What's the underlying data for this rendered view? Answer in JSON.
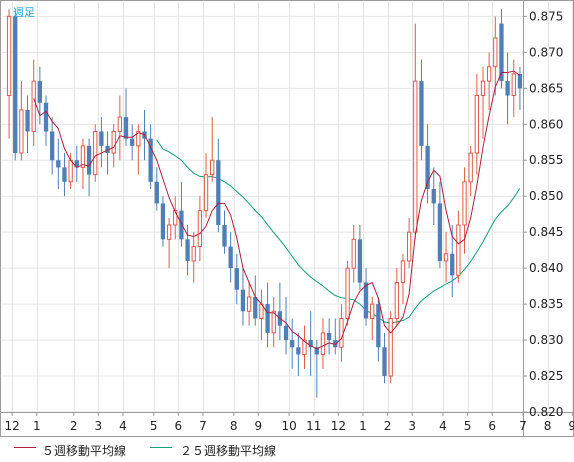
{
  "period_label": "週足",
  "colors": {
    "up_candle": "#e15b4a",
    "down_candle": "#4f7fb4",
    "ma5": "#b01e3c",
    "ma25": "#13a07c",
    "grid": "#e4e4e4",
    "frame": "#9a9a9a",
    "axis_text": "#222222"
  },
  "chart_data": {
    "type": "candlestick",
    "title": "",
    "xlabel": "",
    "ylabel": "",
    "ylim": [
      0.82,
      0.877
    ],
    "y_ticks": [
      "0.875",
      "0.870",
      "0.865",
      "0.860",
      "0.855",
      "0.850",
      "0.845",
      "0.840",
      "0.835",
      "0.830",
      "0.825",
      "0.820"
    ],
    "x_ticks": [
      "12",
      "1",
      "2",
      "3",
      "4",
      "5",
      "6",
      "7",
      "8",
      "9",
      "10",
      "11",
      "12",
      "1",
      "2",
      "3",
      "4",
      "5",
      "6",
      "7",
      "8",
      "9"
    ],
    "grid": true,
    "legend_position": "bottom",
    "candles": [
      [
        0.864,
        0.876,
        0.858,
        0.875
      ],
      [
        0.875,
        0.876,
        0.855,
        0.856
      ],
      [
        0.856,
        0.866,
        0.855,
        0.862
      ],
      [
        0.862,
        0.864,
        0.856,
        0.859
      ],
      [
        0.859,
        0.869,
        0.857,
        0.866
      ],
      [
        0.866,
        0.868,
        0.86,
        0.863
      ],
      [
        0.863,
        0.864,
        0.857,
        0.859
      ],
      [
        0.859,
        0.861,
        0.853,
        0.855
      ],
      [
        0.855,
        0.858,
        0.851,
        0.854
      ],
      [
        0.854,
        0.856,
        0.85,
        0.852
      ],
      [
        0.852,
        0.856,
        0.851,
        0.855
      ],
      [
        0.855,
        0.857,
        0.852,
        0.854
      ],
      [
        0.854,
        0.858,
        0.851,
        0.857
      ],
      [
        0.857,
        0.858,
        0.85,
        0.853
      ],
      [
        0.853,
        0.86,
        0.852,
        0.859
      ],
      [
        0.859,
        0.861,
        0.854,
        0.857
      ],
      [
        0.857,
        0.859,
        0.853,
        0.856
      ],
      [
        0.856,
        0.86,
        0.854,
        0.859
      ],
      [
        0.859,
        0.864,
        0.855,
        0.861
      ],
      [
        0.861,
        0.865,
        0.857,
        0.858
      ],
      [
        0.858,
        0.86,
        0.855,
        0.857
      ],
      [
        0.857,
        0.86,
        0.853,
        0.859
      ],
      [
        0.859,
        0.862,
        0.855,
        0.858
      ],
      [
        0.858,
        0.86,
        0.851,
        0.852
      ],
      [
        0.852,
        0.854,
        0.848,
        0.849
      ],
      [
        0.849,
        0.85,
        0.843,
        0.844
      ],
      [
        0.844,
        0.847,
        0.84,
        0.846
      ],
      [
        0.846,
        0.85,
        0.844,
        0.848
      ],
      [
        0.848,
        0.852,
        0.843,
        0.844
      ],
      [
        0.844,
        0.846,
        0.839,
        0.841
      ],
      [
        0.841,
        0.845,
        0.838,
        0.843
      ],
      [
        0.843,
        0.85,
        0.841,
        0.848
      ],
      [
        0.848,
        0.856,
        0.847,
        0.853
      ],
      [
        0.853,
        0.861,
        0.852,
        0.855
      ],
      [
        0.855,
        0.858,
        0.845,
        0.846
      ],
      [
        0.846,
        0.848,
        0.842,
        0.843
      ],
      [
        0.843,
        0.845,
        0.838,
        0.84
      ],
      [
        0.84,
        0.842,
        0.835,
        0.837
      ],
      [
        0.837,
        0.84,
        0.832,
        0.834
      ],
      [
        0.834,
        0.838,
        0.832,
        0.836
      ],
      [
        0.836,
        0.839,
        0.832,
        0.833
      ],
      [
        0.833,
        0.837,
        0.83,
        0.835
      ],
      [
        0.835,
        0.838,
        0.829,
        0.831
      ],
      [
        0.831,
        0.836,
        0.829,
        0.834
      ],
      [
        0.834,
        0.838,
        0.83,
        0.832
      ],
      [
        0.832,
        0.836,
        0.828,
        0.83
      ],
      [
        0.83,
        0.833,
        0.826,
        0.829
      ],
      [
        0.829,
        0.831,
        0.825,
        0.828
      ],
      [
        0.828,
        0.832,
        0.826,
        0.83
      ],
      [
        0.83,
        0.834,
        0.825,
        0.829
      ],
      [
        0.829,
        0.83,
        0.822,
        0.828
      ],
      [
        0.828,
        0.833,
        0.826,
        0.831
      ],
      [
        0.831,
        0.833,
        0.828,
        0.83
      ],
      [
        0.83,
        0.833,
        0.828,
        0.829
      ],
      [
        0.829,
        0.835,
        0.827,
        0.833
      ],
      [
        0.833,
        0.841,
        0.832,
        0.84
      ],
      [
        0.84,
        0.846,
        0.838,
        0.844
      ],
      [
        0.844,
        0.846,
        0.837,
        0.838
      ],
      [
        0.838,
        0.84,
        0.832,
        0.833
      ],
      [
        0.833,
        0.836,
        0.83,
        0.835
      ],
      [
        0.835,
        0.836,
        0.827,
        0.829
      ],
      [
        0.829,
        0.831,
        0.824,
        0.825
      ],
      [
        0.825,
        0.834,
        0.824,
        0.833
      ],
      [
        0.833,
        0.84,
        0.832,
        0.838
      ],
      [
        0.838,
        0.842,
        0.835,
        0.841
      ],
      [
        0.841,
        0.847,
        0.84,
        0.845
      ],
      [
        0.845,
        0.874,
        0.844,
        0.866
      ],
      [
        0.866,
        0.869,
        0.855,
        0.857
      ],
      [
        0.857,
        0.86,
        0.849,
        0.851
      ],
      [
        0.851,
        0.854,
        0.846,
        0.849
      ],
      [
        0.849,
        0.852,
        0.84,
        0.841
      ],
      [
        0.841,
        0.845,
        0.838,
        0.842
      ],
      [
        0.842,
        0.846,
        0.836,
        0.839
      ],
      [
        0.839,
        0.848,
        0.838,
        0.846
      ],
      [
        0.846,
        0.854,
        0.842,
        0.852
      ],
      [
        0.852,
        0.857,
        0.85,
        0.856
      ],
      [
        0.856,
        0.867,
        0.853,
        0.864
      ],
      [
        0.864,
        0.868,
        0.858,
        0.866
      ],
      [
        0.866,
        0.87,
        0.862,
        0.868
      ],
      [
        0.868,
        0.875,
        0.864,
        0.872
      ],
      [
        0.874,
        0.876,
        0.865,
        0.866
      ],
      [
        0.866,
        0.87,
        0.86,
        0.864
      ],
      [
        0.864,
        0.869,
        0.861,
        0.867
      ],
      [
        0.867,
        0.868,
        0.862,
        0.865
      ]
    ],
    "series": [
      {
        "name": "５週移動平均線",
        "type": "ma",
        "period": 5
      },
      {
        "name": "２５週移動平均線",
        "type": "ma",
        "period": 25
      }
    ]
  }
}
